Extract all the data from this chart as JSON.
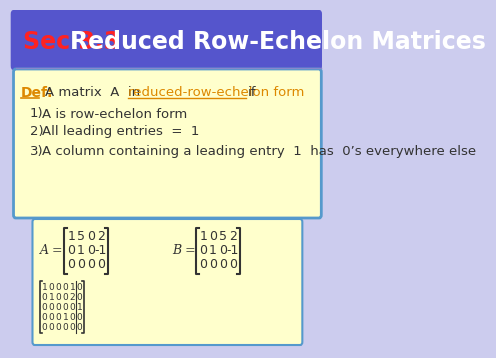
{
  "title_sec": "Sec 3.3",
  "title_main": "Reduced Row-Echelon Matrices",
  "title_bg": "#5555cc",
  "title_fg_sec": "#ff2222",
  "title_fg_main": "#ffffff",
  "body_bg": "#ffffcc",
  "body_border": "#5599cc",
  "def_label": "Def:",
  "def_text": "A matrix  A  in ",
  "def_link": "reduced-row-echelon form ",
  "def_end": "if",
  "item1": "A is row-echelon form",
  "item2": "All leading entries  =  1",
  "item3": "A column containing a leading entry  1  has  0’s everywhere else",
  "matrix_A": [
    [
      1,
      5,
      0,
      2
    ],
    [
      0,
      1,
      0,
      -1
    ],
    [
      0,
      0,
      0,
      0
    ]
  ],
  "matrix_B": [
    [
      1,
      0,
      5,
      2
    ],
    [
      0,
      1,
      0,
      -1
    ],
    [
      0,
      0,
      0,
      0
    ]
  ],
  "matrix_C": [
    [
      1,
      0,
      0,
      0,
      1,
      0
    ],
    [
      0,
      1,
      0,
      0,
      2,
      0
    ],
    [
      0,
      0,
      0,
      0,
      0,
      1
    ],
    [
      0,
      0,
      0,
      1,
      0,
      0
    ],
    [
      0,
      0,
      0,
      0,
      0,
      0
    ]
  ],
  "slide_bg": "#ccccee",
  "accent_color": "#dd8800",
  "text_color": "#333333"
}
